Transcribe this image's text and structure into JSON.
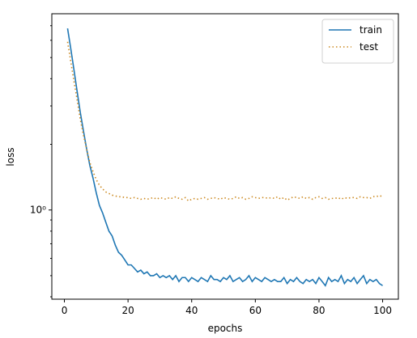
{
  "chart_data": {
    "type": "line",
    "yscale": "log",
    "xlabel": "epochs",
    "ylabel": "loss",
    "x": [
      1,
      2,
      3,
      4,
      5,
      6,
      7,
      8,
      9,
      10,
      11,
      12,
      13,
      14,
      15,
      16,
      17,
      18,
      19,
      20,
      21,
      22,
      23,
      24,
      25,
      26,
      27,
      28,
      29,
      30,
      31,
      32,
      33,
      34,
      35,
      36,
      37,
      38,
      39,
      40,
      41,
      42,
      43,
      44,
      45,
      46,
      47,
      48,
      49,
      50,
      51,
      52,
      53,
      54,
      55,
      56,
      57,
      58,
      59,
      60,
      61,
      62,
      63,
      64,
      65,
      66,
      67,
      68,
      69,
      70,
      71,
      72,
      73,
      74,
      75,
      76,
      77,
      78,
      79,
      80,
      81,
      82,
      83,
      84,
      85,
      86,
      87,
      88,
      89,
      90,
      91,
      92,
      93,
      94,
      95,
      96,
      97,
      98,
      99,
      100
    ],
    "series": [
      {
        "name": "train",
        "color": "#1f77b4",
        "dash": "solid",
        "values": [
          6.8,
          5.5,
          4.4,
          3.5,
          2.8,
          2.3,
          1.9,
          1.6,
          1.4,
          1.2,
          1.05,
          0.97,
          0.88,
          0.8,
          0.76,
          0.69,
          0.64,
          0.62,
          0.59,
          0.56,
          0.56,
          0.54,
          0.52,
          0.53,
          0.51,
          0.52,
          0.5,
          0.5,
          0.51,
          0.49,
          0.5,
          0.49,
          0.5,
          0.48,
          0.5,
          0.47,
          0.49,
          0.49,
          0.47,
          0.49,
          0.48,
          0.47,
          0.49,
          0.48,
          0.47,
          0.5,
          0.48,
          0.48,
          0.47,
          0.49,
          0.48,
          0.5,
          0.47,
          0.48,
          0.49,
          0.47,
          0.48,
          0.5,
          0.47,
          0.49,
          0.48,
          0.47,
          0.49,
          0.48,
          0.47,
          0.48,
          0.47,
          0.47,
          0.49,
          0.46,
          0.48,
          0.47,
          0.49,
          0.47,
          0.46,
          0.48,
          0.47,
          0.48,
          0.46,
          0.49,
          0.47,
          0.45,
          0.49,
          0.47,
          0.48,
          0.47,
          0.5,
          0.46,
          0.48,
          0.47,
          0.49,
          0.46,
          0.48,
          0.5,
          0.46,
          0.48,
          0.47,
          0.48,
          0.46,
          0.45
        ]
      },
      {
        "name": "test",
        "color": "#cc8a22",
        "dash": "dotted",
        "values": [
          5.9,
          4.8,
          3.9,
          3.2,
          2.6,
          2.2,
          1.9,
          1.65,
          1.5,
          1.38,
          1.3,
          1.25,
          1.21,
          1.19,
          1.17,
          1.16,
          1.15,
          1.15,
          1.14,
          1.14,
          1.13,
          1.14,
          1.13,
          1.12,
          1.13,
          1.12,
          1.13,
          1.14,
          1.12,
          1.14,
          1.13,
          1.12,
          1.14,
          1.13,
          1.15,
          1.13,
          1.12,
          1.14,
          1.1,
          1.12,
          1.13,
          1.12,
          1.13,
          1.14,
          1.12,
          1.13,
          1.14,
          1.13,
          1.12,
          1.14,
          1.13,
          1.12,
          1.13,
          1.15,
          1.13,
          1.14,
          1.12,
          1.13,
          1.15,
          1.14,
          1.13,
          1.14,
          1.14,
          1.13,
          1.14,
          1.13,
          1.15,
          1.12,
          1.14,
          1.11,
          1.13,
          1.15,
          1.14,
          1.13,
          1.15,
          1.13,
          1.14,
          1.12,
          1.14,
          1.15,
          1.13,
          1.14,
          1.12,
          1.13,
          1.13,
          1.14,
          1.12,
          1.14,
          1.13,
          1.14,
          1.14,
          1.13,
          1.15,
          1.14,
          1.14,
          1.13,
          1.15,
          1.16,
          1.15,
          1.17
        ]
      }
    ],
    "xlim": [
      -3.95,
      104.95
    ],
    "ylim": [
      0.39,
      7.94
    ],
    "xticks": [
      0,
      20,
      40,
      60,
      80,
      100
    ],
    "yticks": [
      {
        "value": 1,
        "label": "10⁰"
      }
    ],
    "y_minor_ticks": [
      0.4,
      0.5,
      0.6,
      0.7,
      0.8,
      0.9,
      2,
      3,
      4,
      5,
      6,
      7
    ],
    "legend": "upper right"
  }
}
